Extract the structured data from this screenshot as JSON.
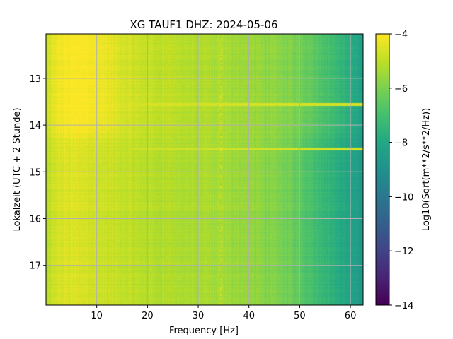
{
  "chart_data": {
    "type": "heatmap",
    "title": "XG TAUF1  DHZ: 2024-05-06",
    "xlabel": "Frequency [Hz]",
    "ylabel": "Lokalzeit (UTC + 2 Stunde)",
    "xlim": [
      0,
      62.5
    ],
    "ylim": [
      17.85,
      12.05
    ],
    "y_inverted": true,
    "grid": true,
    "colormap": "viridis",
    "x_ticks": [
      10,
      20,
      30,
      40,
      50,
      60
    ],
    "y_ticks": [
      13,
      14,
      15,
      16,
      17
    ],
    "colorbar": {
      "label": "Log10(Sqrt(m**2/s**2/Hz))",
      "range": [
        -14,
        -4
      ],
      "ticks": [
        "−4",
        "−6",
        "−8",
        "−10",
        "−12",
        "−14"
      ],
      "tick_values": [
        -4,
        -6,
        -8,
        -10,
        -12,
        -14
      ]
    },
    "surface_profile": {
      "frequency_hz": [
        0,
        2,
        5,
        8,
        12,
        15,
        20,
        25,
        30,
        35,
        40,
        45,
        48,
        50,
        52,
        55,
        58,
        60,
        62.5
      ],
      "early_level": [
        -4.9,
        -4.2,
        -4.0,
        -4.0,
        -4.3,
        -4.6,
        -4.9,
        -5.0,
        -5.2,
        -5.3,
        -5.5,
        -5.7,
        -5.9,
        -6.1,
        -6.4,
        -6.9,
        -7.4,
        -7.8,
        -8.4
      ],
      "late_level": [
        -5.2,
        -4.6,
        -4.5,
        -4.6,
        -4.8,
        -4.9,
        -5.1,
        -5.2,
        -5.3,
        -5.4,
        -5.6,
        -5.9,
        -6.2,
        -6.5,
        -6.9,
        -7.4,
        -7.9,
        -8.2,
        -8.7
      ],
      "transition_time": 14.2
    },
    "bright_bands": [
      {
        "frequency_hz": [
          15.5,
          62.5
        ],
        "time": 13.55,
        "level": -4.6
      },
      {
        "frequency_hz": [
          17,
          62.5
        ],
        "time": 14.5,
        "level": -4.7
      }
    ],
    "bright_lines_hz": [
      34.5,
      24.5
    ]
  }
}
